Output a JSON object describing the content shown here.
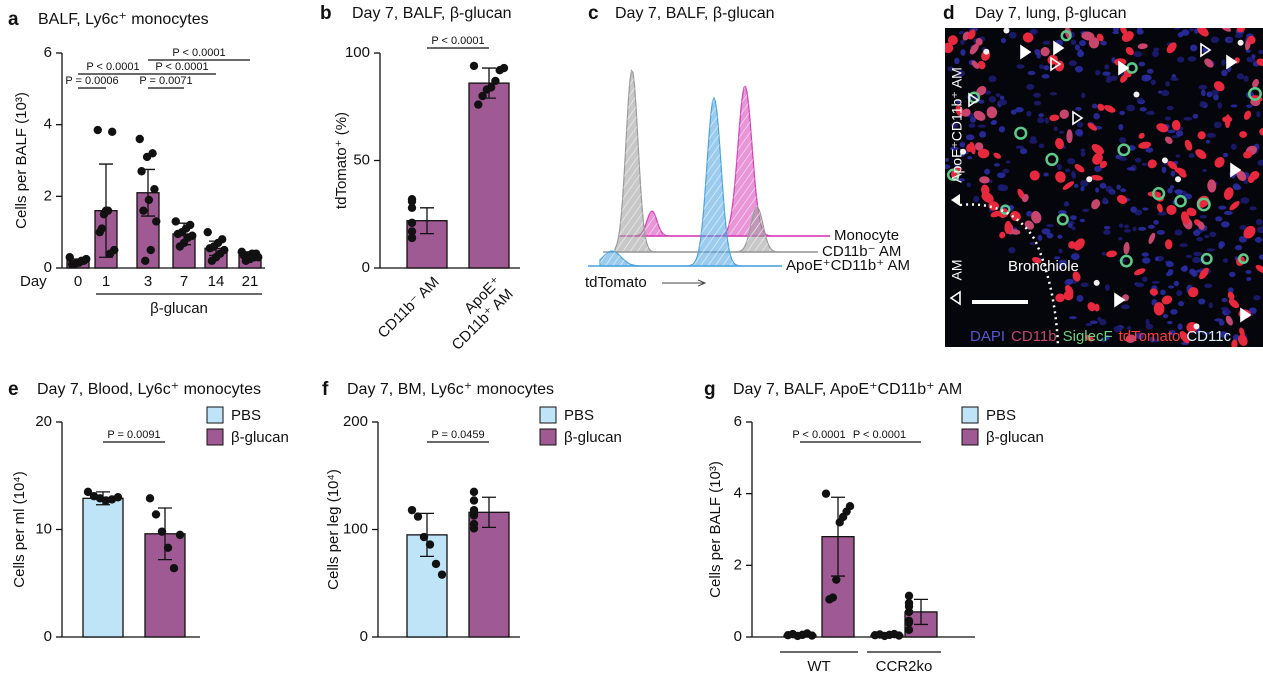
{
  "chart_data": [
    {
      "label": "a",
      "type": "bar",
      "title": "BALF, Ly6c⁺ monocytes",
      "ylabel": "Cells per BALF (10³)",
      "xlabel": "Day",
      "categories": [
        "0",
        "1",
        "3",
        "7",
        "14",
        "21"
      ],
      "group": {
        "label": "β-glucan",
        "from": "1",
        "to": "21"
      },
      "ylim": [
        0,
        6
      ],
      "yticks": [
        0,
        2,
        4,
        6
      ],
      "series": [
        {
          "color": "#a05a93",
          "values": [
            0.2,
            1.6,
            2.1,
            0.95,
            0.55,
            0.35
          ],
          "errors": [
            0.05,
            1.3,
            0.65,
            0.3,
            0.2,
            0.1
          ],
          "points": [
            [
              0.3,
              0.25,
              0.2,
              0.2,
              0.15,
              0.15,
              0.1,
              0.1
            ],
            [
              3.85,
              3.8,
              1.6,
              1.5,
              1.0,
              0.5,
              0.4,
              1.6,
              1.1
            ],
            [
              3.6,
              3.2,
              3.1,
              2.7,
              2.2,
              1.9,
              1.6,
              1.3,
              0.5,
              0.2
            ],
            [
              1.3,
              1.2,
              1.1,
              1.0,
              0.95,
              0.9,
              0.85,
              0.7,
              0.6
            ],
            [
              1.0,
              0.8,
              0.7,
              0.6,
              0.55,
              0.5,
              0.4,
              0.3,
              0.2
            ],
            [
              0.45,
              0.4,
              0.4,
              0.35,
              0.35,
              0.3,
              0.3,
              0.25,
              0.2
            ]
          ]
        }
      ],
      "comparisons": [
        {
          "label": "P < 0.0001",
          "from": [
            "3"
          ],
          "to": [
            "21"
          ]
        },
        {
          "label": "P < 0.0001",
          "from": [
            "0"
          ],
          "to": [
            "3"
          ]
        },
        {
          "label": "P < 0.0001",
          "from": [
            "3"
          ],
          "to": [
            "14"
          ]
        },
        {
          "label": "P = 0.0006",
          "from": [
            "0"
          ],
          "to": [
            "1"
          ]
        },
        {
          "label": "P = 0.0071",
          "from": [
            "3"
          ],
          "to": [
            "7"
          ]
        }
      ]
    },
    {
      "label": "b",
      "type": "bar",
      "title": "Day 7, BALF, β-glucan",
      "ylabel": "tdTomato⁺ (%)",
      "categories": [
        [
          "CD11b⁻ AM"
        ],
        [
          "ApoE⁺",
          "CD11b⁺ AM"
        ]
      ],
      "ylim": [
        0,
        100
      ],
      "yticks": [
        0,
        50,
        100
      ],
      "series": [
        {
          "color": "#a05a93",
          "values": [
            22,
            86
          ],
          "errors": [
            6,
            7
          ],
          "points": [
            [
              32,
              31,
              28,
              21,
              17,
              14,
              14
            ],
            [
              94,
              93,
              92,
              87,
              84,
              83,
              80,
              76
            ]
          ]
        }
      ],
      "comparisons": [
        {
          "label": "P < 0.0001",
          "from": [
            "CD11b⁻ AM"
          ],
          "to": [
            "ApoE⁺"
          ]
        }
      ]
    },
    {
      "label": "c",
      "type": "flow-histogram",
      "title": "Day 7, BALF, β-glucan",
      "xlabel": "tdTomato",
      "series": [
        {
          "name": "Monocyte",
          "color": "#d63fb6"
        },
        {
          "name": "CD11b⁻ AM",
          "color": "#9a9a9a"
        },
        {
          "name": "ApoE⁺CD11b⁺ AM",
          "color": "#4aa3de"
        }
      ]
    },
    {
      "label": "d",
      "type": "micrograph",
      "title": "Day 7, lung, β-glucan",
      "annotations": [
        "ApoE⁺CD11b⁺ AM",
        "AM",
        "Bronchiole"
      ],
      "channels": [
        {
          "name": "DAPI",
          "color": "#5656d0"
        },
        {
          "name": "CD11b",
          "color": "#c8456e"
        },
        {
          "name": "SiglecF",
          "color": "#6fcf7f"
        },
        {
          "name": "tdTomato",
          "color": "#ff3b3b"
        },
        {
          "name": "CD11c",
          "color": "#d8eef5"
        }
      ]
    },
    {
      "label": "e",
      "type": "bar",
      "title": "Day 7, Blood, Ly6c⁺ monocytes",
      "ylabel": "Cells per ml (10⁴)",
      "ylim": [
        0,
        20
      ],
      "yticks": [
        0,
        10,
        20
      ],
      "series": [
        {
          "name": "PBS",
          "color": "#bfe3f7",
          "values": [
            12.9
          ],
          "errors": [
            0.6
          ],
          "points": [
            [
              13.5,
              13.1,
              12.9,
              12.7,
              12.8,
              13.0
            ]
          ]
        },
        {
          "name": "β-glucan",
          "color": "#a05a93",
          "values": [
            9.6
          ],
          "errors": [
            2.4
          ],
          "points": [
            [
              12.9,
              11.4,
              9.8,
              8.3,
              6.4,
              9.5
            ]
          ]
        }
      ],
      "comparisons": [
        {
          "label": "P = 0.0091",
          "from": [
            "PBS"
          ],
          "to": [
            "β-glucan"
          ]
        }
      ]
    },
    {
      "label": "f",
      "type": "bar",
      "title": "Day 7, BM, Ly6c⁺ monocytes",
      "ylabel": "Cells per leg (10⁴)",
      "ylim": [
        0,
        200
      ],
      "yticks": [
        0,
        100,
        200
      ],
      "series": [
        {
          "name": "PBS",
          "color": "#bfe3f7",
          "values": [
            95
          ],
          "errors": [
            20
          ],
          "points": [
            [
              118,
              112,
              93,
              86,
              68,
              58
            ]
          ]
        },
        {
          "name": "β-glucan",
          "color": "#a05a93",
          "values": [
            116
          ],
          "errors": [
            14
          ],
          "points": [
            [
              135,
              127,
              118,
              113,
              105,
              101,
              116
            ]
          ]
        }
      ],
      "comparisons": [
        {
          "label": "P = 0.0459",
          "from": [
            "PBS"
          ],
          "to": [
            "β-glucan"
          ]
        }
      ]
    },
    {
      "label": "g",
      "type": "bar",
      "title": "Day 7, BALF, ApoE⁺CD11b⁺ AM",
      "ylabel": "Cells per BALF (10³)",
      "categories": [
        "WT",
        "CCR2ko"
      ],
      "ylim": [
        0,
        6
      ],
      "yticks": [
        0,
        2,
        4,
        6
      ],
      "series": [
        {
          "name": "PBS",
          "color": "#bfe3f7",
          "values": [
            0.05,
            0.05
          ],
          "errors": [
            0.03,
            0.02
          ],
          "points": [
            [
              0.05,
              0.08,
              0.03,
              0.06,
              0.1,
              0.04
            ],
            [
              0.05,
              0.07,
              0.03,
              0.06,
              0.08,
              0.04
            ]
          ]
        },
        {
          "name": "β-glucan",
          "color": "#a05a93",
          "values": [
            2.8,
            0.7
          ],
          "errors": [
            1.1,
            0.35
          ],
          "points": [
            [
              4.0,
              3.65,
              3.5,
              3.35,
              3.2,
              1.6,
              1.1,
              1.05
            ],
            [
              1.15,
              0.95,
              0.85,
              0.7,
              0.45,
              0.2,
              0.4
            ]
          ]
        }
      ],
      "comparisons": [
        {
          "label": "P < 0.0001",
          "from": [
            "WT",
            "PBS"
          ],
          "to": [
            "WT",
            "β-glucan"
          ]
        },
        {
          "label": "P < 0.0001",
          "from": [
            "WT",
            "β-glucan"
          ],
          "to": [
            "CCR2ko",
            "β-glucan"
          ]
        }
      ]
    }
  ]
}
